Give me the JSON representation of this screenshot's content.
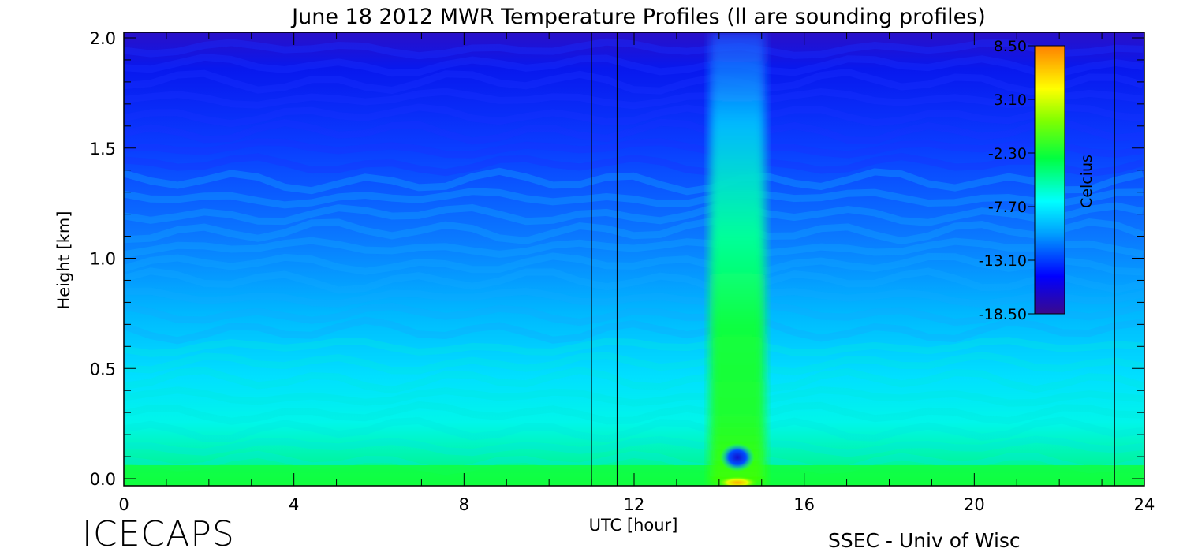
{
  "logo_text": "ICECAPS",
  "credit_text": "SSEC - Univ of Wisc",
  "chart_data": {
    "type": "heatmap",
    "title": "June 18 2012 MWR Temperature Profiles (ll are sounding profiles)",
    "xlabel": "UTC [hour]",
    "ylabel": "Height [km]",
    "xlim": [
      0,
      24
    ],
    "ylim": [
      0.0,
      2.0
    ],
    "xticks": [
      0,
      4,
      8,
      12,
      16,
      20,
      24
    ],
    "yticks": [
      0.0,
      0.5,
      1.0,
      1.5,
      2.0
    ],
    "ytick_labels": [
      "0.0",
      "0.5",
      "1.0",
      "1.5",
      "2.0"
    ],
    "sounding_times_utc": [
      11.0,
      11.6,
      23.3
    ],
    "colorbar": {
      "label": "Celcius",
      "min": -18.5,
      "max": 8.5,
      "tick_values": [
        8.5,
        3.1,
        -2.3,
        -7.7,
        -13.1,
        -18.5
      ],
      "tick_labels": [
        "8.50",
        "3.10",
        "-2.30",
        "-7.70",
        "-13.10",
        "-18.50"
      ],
      "colormap": [
        "#3a0a8c",
        "#0000ff",
        "#00a0ff",
        "#00ffff",
        "#00ff40",
        "#80ff00",
        "#ffff00",
        "#ff8000"
      ]
    }
  }
}
